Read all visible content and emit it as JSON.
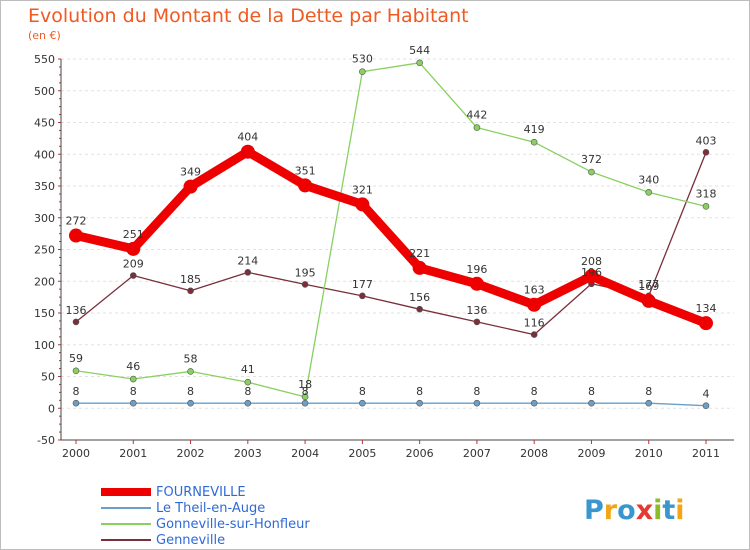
{
  "header": {
    "title": "Evolution du Montant de la Dette par Habitant",
    "subtitle": "(en €)"
  },
  "brand": {
    "name": "Proxiti",
    "letters": [
      {
        "char": "P",
        "color": "#3a96cf"
      },
      {
        "char": "r",
        "color": "#f2a516"
      },
      {
        "char": "o",
        "color": "#3a96cf"
      },
      {
        "char": "x",
        "color": "#e53a2f"
      },
      {
        "char": "i",
        "color": "#8bbd2a"
      },
      {
        "char": "t",
        "color": "#3a96cf"
      },
      {
        "char": "i",
        "color": "#f2a516"
      }
    ]
  },
  "colors": {
    "title": "#f05a22",
    "axis_text": "#333333",
    "grid": "#e2e2e2",
    "legend_text": "#2e6ad6"
  },
  "chart_data": {
    "type": "line",
    "title": "Evolution du Montant de la Dette par Habitant",
    "subtitle": "(en €)",
    "x": [
      "2000",
      "2001",
      "2002",
      "2003",
      "2004",
      "2005",
      "2006",
      "2007",
      "2008",
      "2009",
      "2010",
      "2011"
    ],
    "y_ticks": [
      -50,
      0,
      50,
      100,
      150,
      200,
      250,
      300,
      350,
      400,
      450,
      500,
      550
    ],
    "ylim": [
      -50,
      550
    ],
    "grid": "horizontal dashed",
    "legend_position": "bottom-left",
    "series": [
      {
        "name": "FOURNEVILLE",
        "color": "#ee0000",
        "width": "thick",
        "values": [
          272,
          251,
          349,
          404,
          351,
          321,
          221,
          196,
          163,
          208,
          169,
          134
        ],
        "labels": [
          "272",
          "251",
          "349",
          "404",
          "351",
          "321",
          "221",
          "196",
          "163",
          "208",
          "169",
          "134"
        ]
      },
      {
        "name": "Le Theil-en-Auge",
        "color": "#6a9fc9",
        "width": "thin",
        "values": [
          8,
          8,
          8,
          8,
          8,
          8,
          8,
          8,
          8,
          8,
          8,
          4
        ],
        "labels": [
          "8",
          "8",
          "8",
          "8",
          "8",
          "8",
          "8",
          "8",
          "8",
          "8",
          "8",
          "4"
        ]
      },
      {
        "name": "Gonneville-sur-Honfleur",
        "color": "#88d060",
        "width": "thin",
        "values": [
          59,
          46,
          58,
          41,
          18,
          530,
          544,
          442,
          419,
          372,
          340,
          318
        ],
        "labels": [
          "59",
          "46",
          "58",
          "41",
          "18",
          "530",
          "544",
          "442",
          "419",
          "372",
          "340",
          "318"
        ]
      },
      {
        "name": "Genneville",
        "color": "#7a2f3a",
        "width": "thin",
        "values": [
          136,
          209,
          185,
          214,
          195,
          177,
          156,
          136,
          116,
          196,
          177,
          403
        ],
        "labels": [
          "136",
          "209",
          "185",
          "214",
          "195",
          "177",
          "156",
          "136",
          "116",
          "196",
          "177",
          "403"
        ]
      }
    ]
  }
}
